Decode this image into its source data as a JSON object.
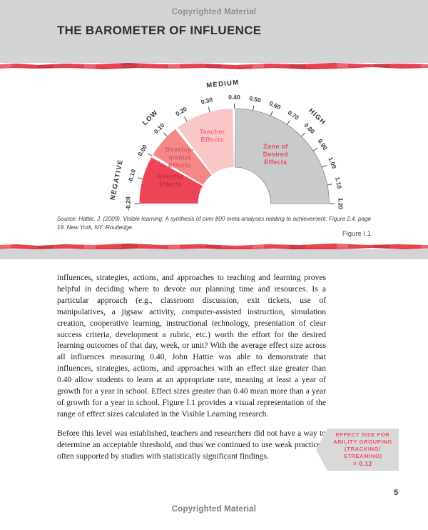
{
  "page": {
    "top_watermark": "Copyrighted Material",
    "title": "THE BAROMETER OF INFLUENCE",
    "source_note": "Source: Hattie, J. (2009). Visible learning: A synthesis of over 800 meta-analyses relating to achievement. Figure 2.4, page 19. New York, NY: Routledge.",
    "figure_label": "Figure I.1",
    "page_number": "5",
    "bottom_watermark": "Copyrighted Material"
  },
  "chart_data": {
    "type": "gauge",
    "title": "The Barometer of Influence",
    "axis": {
      "min": -0.2,
      "max": 1.2,
      "pivot_value": 0.4,
      "pivot_angle_deg": 90,
      "ticks": [
        {
          "value": -0.2,
          "label": "-0.20"
        },
        {
          "value": -0.1,
          "label": "-0.10"
        },
        {
          "value": 0.0,
          "label": "0.00"
        },
        {
          "value": 0.1,
          "label": "0.10"
        },
        {
          "value": 0.2,
          "label": "0.20"
        },
        {
          "value": 0.3,
          "label": "0.30"
        },
        {
          "value": 0.4,
          "label": "0.40"
        },
        {
          "value": 0.5,
          "label": "0.50"
        },
        {
          "value": 0.6,
          "label": "0.60"
        },
        {
          "value": 0.7,
          "label": "0.70"
        },
        {
          "value": 0.8,
          "label": "0.80"
        },
        {
          "value": 0.9,
          "label": "0.90"
        },
        {
          "value": 1.0,
          "label": "1.00"
        },
        {
          "value": 1.1,
          "label": "1.10"
        },
        {
          "value": 1.2,
          "label": "1.20"
        }
      ]
    },
    "bands": [
      {
        "label": "NEGATIVE",
        "angle_deg": 168.5
      },
      {
        "label": "LOW",
        "angle_deg": 134.4
      },
      {
        "label": "MEDIUM",
        "angle_deg": 95.5
      },
      {
        "label": "HIGH",
        "angle_deg": 46.3
      }
    ],
    "segments": [
      {
        "name": "reverse-effects",
        "label_lines": [
          "Reverse",
          "Effects"
        ],
        "from": -0.2,
        "to": 0.0,
        "fill": "#ee4457",
        "text_color": "#c22f47",
        "label_angle_deg": 160,
        "label_radius": 95
      },
      {
        "name": "developmental-effects",
        "label_lines": [
          "Develop-",
          "mental",
          "Effects"
        ],
        "from": 0.0,
        "to": 0.15,
        "fill": "#f48787",
        "text_color": "#d8596b",
        "label_angle_deg": 140,
        "label_radius": 100
      },
      {
        "name": "teacher-effects",
        "label_lines": [
          "Teacher",
          "Effects"
        ],
        "from": 0.15,
        "to": 0.4,
        "fill": "#f9c7c7",
        "text_color": "#ee6e80",
        "label_angle_deg": 108,
        "label_radius": 100
      },
      {
        "name": "zone-of-desired-effects",
        "label_lines": [
          "Zone of",
          "Desired",
          "Effects"
        ],
        "from": 0.4,
        "to": 1.2,
        "fill": "#c9cacc",
        "text_color": "#e84b5e",
        "stroke": "#8b8c8e",
        "label_angle_deg": 50,
        "label_radius": 90
      }
    ]
  },
  "body": {
    "paragraphs": [
      "influences, strategies, actions, and approaches to teaching and learning proves helpful in deciding where to devote our planning time and resources. Is a particular approach (e.g., classroom discussion, exit tickets, use of manipulatives, a jigsaw activity, computer-assisted instruction, simulation creation, cooperative learning, instructional technology, presentation of clear success criteria, development a rubric, etc.) worth the effort for the desired learning outcomes of that day, week, or unit? With the average effect size across all influences measuring 0.40, John Hattie was able to demonstrate that influences, strategies, actions, and approaches with an effect size greater than 0.40 allow students to learn at an appropriate rate, meaning at least a year of growth for a year in school. Effect sizes greater than 0.40 mean more than a year of growth for a year in school. Figure I.1 provides a visual representation of the range of effect sizes calculated in the Visible Learning research.",
      "Before this level was established, teachers and researchers did not have a way to determine an acceptable threshold, and thus we continued to use weak practices, often supported by studies with statistically significant findings."
    ]
  },
  "callout": {
    "lines": [
      "EFFECT SIZE FOR",
      "ABILITY GROUPING",
      "(TRACKING/",
      "STREAMING)"
    ],
    "value_line": "= 0.12"
  },
  "colors": {
    "accent_red": "#e8424f",
    "header_gray": "#d3d4d4",
    "callout_bg": "#d9d9d9",
    "callout_text": "#ee5066",
    "callout_value": "#e7384e"
  }
}
